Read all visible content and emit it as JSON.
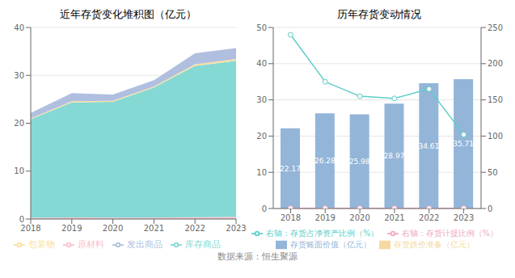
{
  "chart_data": [
    {
      "type": "area",
      "title": "近年存货变化堆积图（亿元）",
      "stacked": true,
      "x": [
        2018,
        2019,
        2020,
        2021,
        2022,
        2023
      ],
      "series": [
        {
          "name": "原材料",
          "color": "#f7c2ce",
          "values": [
            0.25,
            0.35,
            0.28,
            0.28,
            0.38,
            0.45
          ]
        },
        {
          "name": "库存商品",
          "color": "#85d9d4",
          "values": [
            20.6,
            24.0,
            24.2,
            27.2,
            31.6,
            32.6
          ]
        },
        {
          "name": "包装物",
          "color": "#f9dfa0",
          "values": [
            0.18,
            0.25,
            0.22,
            0.22,
            0.32,
            0.35
          ]
        },
        {
          "name": "发出商品",
          "color": "#b0bfe0",
          "values": [
            1.14,
            1.68,
            1.28,
            1.27,
            2.31,
            2.31
          ]
        }
      ],
      "xlim": [
        2018,
        2023
      ],
      "xticks": [
        2018,
        2019,
        2020,
        2021,
        2022,
        2023
      ],
      "ylim": [
        0,
        40
      ],
      "yticks": [
        0,
        10,
        20,
        30,
        40
      ],
      "grid": true,
      "legend": "bottom"
    },
    {
      "type": "bar",
      "title": "历年存货变动情况",
      "categories": [
        "2018",
        "2019",
        "2020",
        "2021",
        "2022",
        "2023"
      ],
      "series": [
        {
          "name": "存货账面价值（亿元）",
          "type": "bar",
          "color": "#93b5d8",
          "values": [
            22.17,
            26.28,
            25.98,
            28.97,
            34.61,
            35.71
          ],
          "data_labels": true
        },
        {
          "name": "存货跌价准备（亿元）",
          "type": "bar",
          "color": "#f5d9a0",
          "values": [
            0.06,
            0.07,
            0.07,
            0.07,
            0.07,
            0.08
          ]
        },
        {
          "name": "右轴：存货占净资产比例（%）",
          "type": "line",
          "axis": "y2",
          "color": "#5ecec8",
          "marker": "circle",
          "values": [
            240,
            175,
            155,
            152,
            165,
            102
          ]
        },
        {
          "name": "右轴：存货计提比例（%）",
          "type": "line",
          "axis": "y2",
          "color": "#f0a8c0",
          "marker": "circle",
          "values": [
            0.27,
            0.27,
            0.27,
            0.24,
            0.2,
            0.22
          ]
        }
      ],
      "ylim": [
        0,
        50
      ],
      "yticks": [
        0,
        10,
        20,
        30,
        40,
        50
      ],
      "y2lim": [
        0,
        250
      ],
      "y2ticks": [
        0,
        50,
        100,
        150,
        200,
        250
      ],
      "grid": true,
      "legend": "bottom",
      "annotations": [
        "数据来源：恒生聚源"
      ]
    }
  ]
}
